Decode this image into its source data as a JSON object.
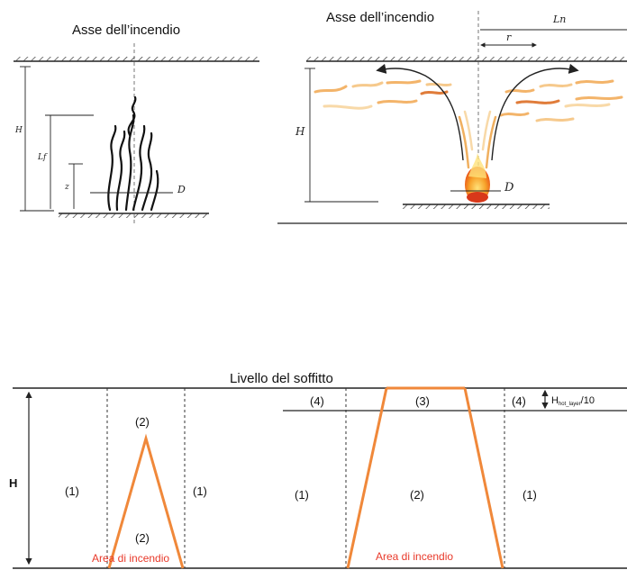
{
  "fig1": {
    "title": "Asse dell’incendio",
    "label_H": "H",
    "label_Lf": "Lf",
    "label_z": "z",
    "label_D": "D"
  },
  "fig2": {
    "title": "Asse dell’incendio",
    "label_Ln": "Ln",
    "label_r": "r",
    "label_H": "H",
    "label_D": "D"
  },
  "fig3": {
    "ceiling_label": "Livello del soffitto",
    "label_H": "H",
    "left": {
      "zone_1_left": "(1)",
      "zone_2_top": "(2)",
      "zone_2_bottom": "(2)",
      "zone_1_right": "(1)",
      "fire_area": "Area di incendio"
    },
    "right": {
      "zone_4_left": "(4)",
      "zone_3": "(3)",
      "zone_4_right": "(4)",
      "hot_layer": "H",
      "hot_layer_sub": "hot_layer",
      "hot_layer_div": "/10",
      "zone_1_left": "(1)",
      "zone_2": "(2)",
      "zone_1_right": "(1)",
      "fire_area": "Area di incendio"
    }
  },
  "colors": {
    "orange": "#f0883a",
    "red_text": "#e8392a",
    "line": "#222222",
    "flame_yellow": "#f7c64a",
    "flame_orange": "#ee6a1f"
  }
}
